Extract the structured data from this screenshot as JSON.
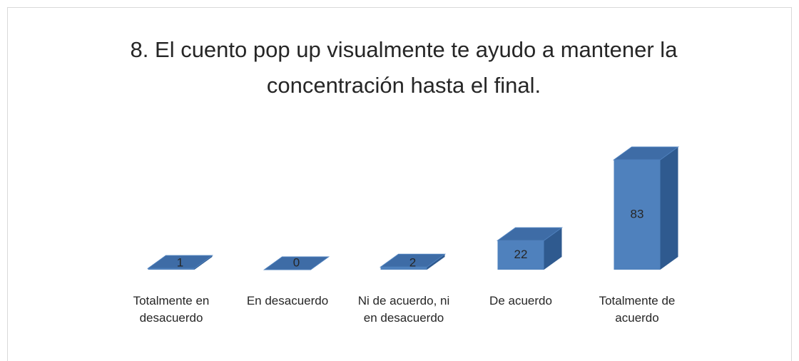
{
  "chart_data": {
    "type": "bar3d",
    "title": [
      "8. El cuento pop up visualmente te ayudo a mantener la",
      "concentración hasta el final."
    ],
    "categories": [
      "Totalmente en desacuerdo",
      "En desacuerdo",
      "Ni de acuerdo, ni en desacuerdo",
      "De acuerdo",
      "Totalmente de acuerdo"
    ],
    "values": [
      1,
      0,
      2,
      22,
      83
    ],
    "color": "#4f81bd"
  }
}
